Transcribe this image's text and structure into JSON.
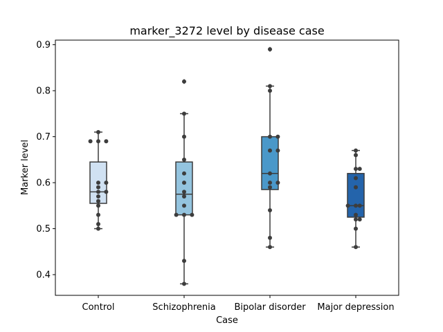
{
  "chart_data": {
    "type": "box",
    "title": "marker_3272 level by disease case",
    "xlabel": "Case",
    "ylabel": "Marker level",
    "ylim": [
      0.355,
      0.91
    ],
    "yticks": [
      0.4,
      0.5,
      0.6,
      0.7,
      0.8,
      0.9
    ],
    "ytick_labels": [
      "0.4",
      "0.5",
      "0.6",
      "0.7",
      "0.8",
      "0.9"
    ],
    "grid": false,
    "legend": "none",
    "categories": [
      "Control",
      "Schizophrenia",
      "Bipolar disorder",
      "Major depression"
    ],
    "colors": [
      "#d0e1f2",
      "#94c4df",
      "#4a98c9",
      "#2464ab"
    ],
    "boxes": [
      {
        "whisker_low": 0.5,
        "q1": 0.555,
        "median": 0.58,
        "q3": 0.645,
        "whisker_high": 0.71,
        "outliers": []
      },
      {
        "whisker_low": 0.38,
        "q1": 0.53,
        "median": 0.575,
        "q3": 0.645,
        "whisker_high": 0.75,
        "outliers": [
          0.82
        ]
      },
      {
        "whisker_low": 0.46,
        "q1": 0.585,
        "median": 0.62,
        "q3": 0.7,
        "whisker_high": 0.81,
        "outliers": [
          0.89
        ]
      },
      {
        "whisker_low": 0.46,
        "q1": 0.525,
        "median": 0.55,
        "q3": 0.62,
        "whisker_high": 0.67,
        "outliers": []
      }
    ],
    "points": [
      [
        0.5,
        0.51,
        0.53,
        0.55,
        0.56,
        0.57,
        0.58,
        0.58,
        0.59,
        0.6,
        0.6,
        0.69,
        0.69,
        0.69,
        0.71
      ],
      [
        0.38,
        0.43,
        0.53,
        0.53,
        0.53,
        0.55,
        0.57,
        0.58,
        0.6,
        0.62,
        0.65,
        0.7,
        0.75,
        0.82
      ],
      [
        0.46,
        0.48,
        0.54,
        0.59,
        0.6,
        0.6,
        0.62,
        0.67,
        0.67,
        0.7,
        0.7,
        0.8,
        0.81,
        0.89
      ],
      [
        0.46,
        0.5,
        0.52,
        0.52,
        0.53,
        0.55,
        0.55,
        0.55,
        0.59,
        0.61,
        0.63,
        0.63,
        0.66,
        0.67
      ]
    ]
  }
}
